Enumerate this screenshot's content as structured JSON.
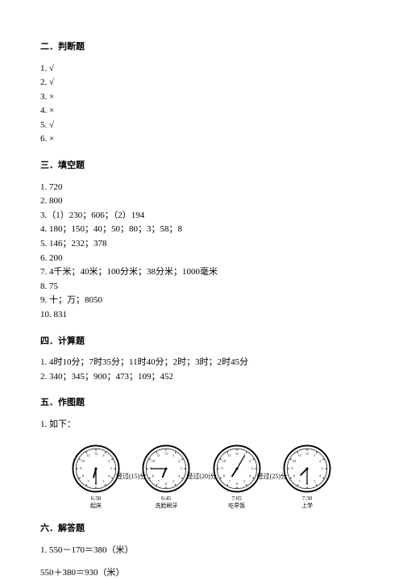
{
  "section2": {
    "title": "二．判断题",
    "items": [
      "1. √",
      "2. √",
      "3. ×",
      "4. ×",
      "5. √",
      "6. ×"
    ]
  },
  "section3": {
    "title": "三．填空题",
    "items": [
      "1. 720",
      "2. 800",
      "3.（1）230；606；（2）194",
      "4. 180；150；40；50；80；3；58；8",
      "5. 146；232；378",
      "6. 200",
      "7. 4千米；40米；100分米；38分米；1000毫米",
      "8. 75",
      "9. 十；万；8050",
      "10. 831"
    ]
  },
  "section4": {
    "title": "四．计算题",
    "items": [
      "1. 4时10分；7时35分；11时40分；2时；3时；2时45分",
      "2. 340；345；900；473；109；452"
    ]
  },
  "section5": {
    "title": "五．作图题",
    "intro": "1. 如下："
  },
  "clocks": {
    "data": [
      {
        "time": "6:30",
        "label": "起床",
        "hour_angle": 195,
        "minute_angle": 180
      },
      {
        "time": "6:45",
        "label": "洗脸刷牙",
        "hour_angle": 202.5,
        "minute_angle": 270
      },
      {
        "time": "7:05",
        "label": "吃早饭",
        "hour_angle": 212.5,
        "minute_angle": 30
      },
      {
        "time": "7:30",
        "label": "上学",
        "hour_angle": 225,
        "minute_angle": 180
      }
    ],
    "arrows": [
      "经过(15)分",
      "经过(20)分",
      "经过(25)分"
    ],
    "styling": {
      "clock_border_color": "#000000",
      "clock_face_color": "#ffffff",
      "hand_color": "#000000",
      "tick_color": "#000000"
    }
  },
  "section6": {
    "title": "六．解答题",
    "items": [
      "1. 550－170＝380（米）",
      "550＋380＝930（米）"
    ]
  }
}
